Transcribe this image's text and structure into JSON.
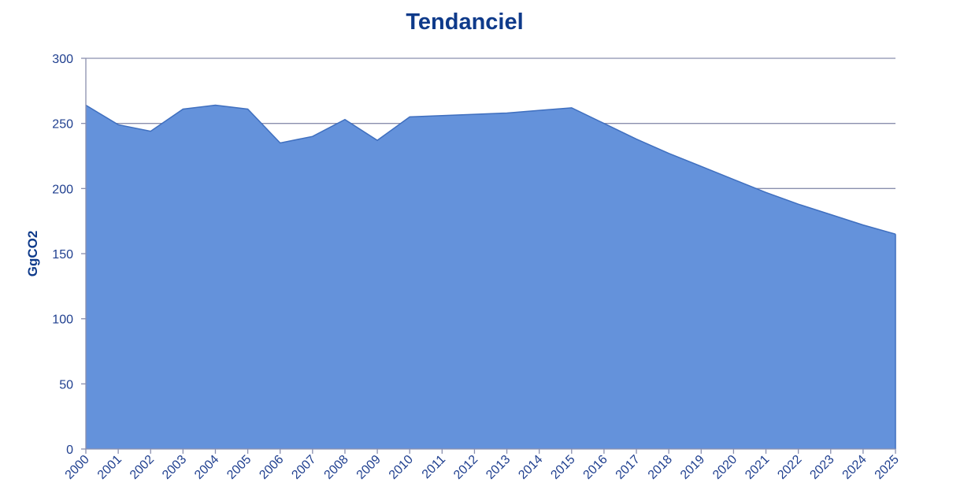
{
  "chart_data": {
    "type": "area",
    "title": "Tendanciel",
    "xlabel": "",
    "ylabel": "GgCO2",
    "x": [
      "2000",
      "2001",
      "2002",
      "2003",
      "2004",
      "2005",
      "2006",
      "2007",
      "2008",
      "2009",
      "2010",
      "2011",
      "2012",
      "2013",
      "2014",
      "2015",
      "2016",
      "2017",
      "2018",
      "2019",
      "2020",
      "2021",
      "2022",
      "2023",
      "2024",
      "2025"
    ],
    "series": [
      {
        "values": [
          264,
          249,
          244,
          261,
          264,
          261,
          235,
          240,
          253,
          237,
          255,
          256,
          257,
          258,
          260,
          262,
          250,
          238,
          227,
          217,
          207,
          197,
          188,
          180,
          172,
          165
        ]
      }
    ],
    "ylim": [
      0,
      300
    ],
    "yticks": [
      0,
      50,
      100,
      150,
      200,
      250,
      300
    ],
    "grid": "horizontal",
    "legend": "none",
    "colors": {
      "fill": "#6492db",
      "line": "#3f6fbf",
      "grid": "#8a8fae",
      "axis": "#8a8fae",
      "text": "#1f3f8f",
      "title": "#0e3a8a"
    }
  }
}
